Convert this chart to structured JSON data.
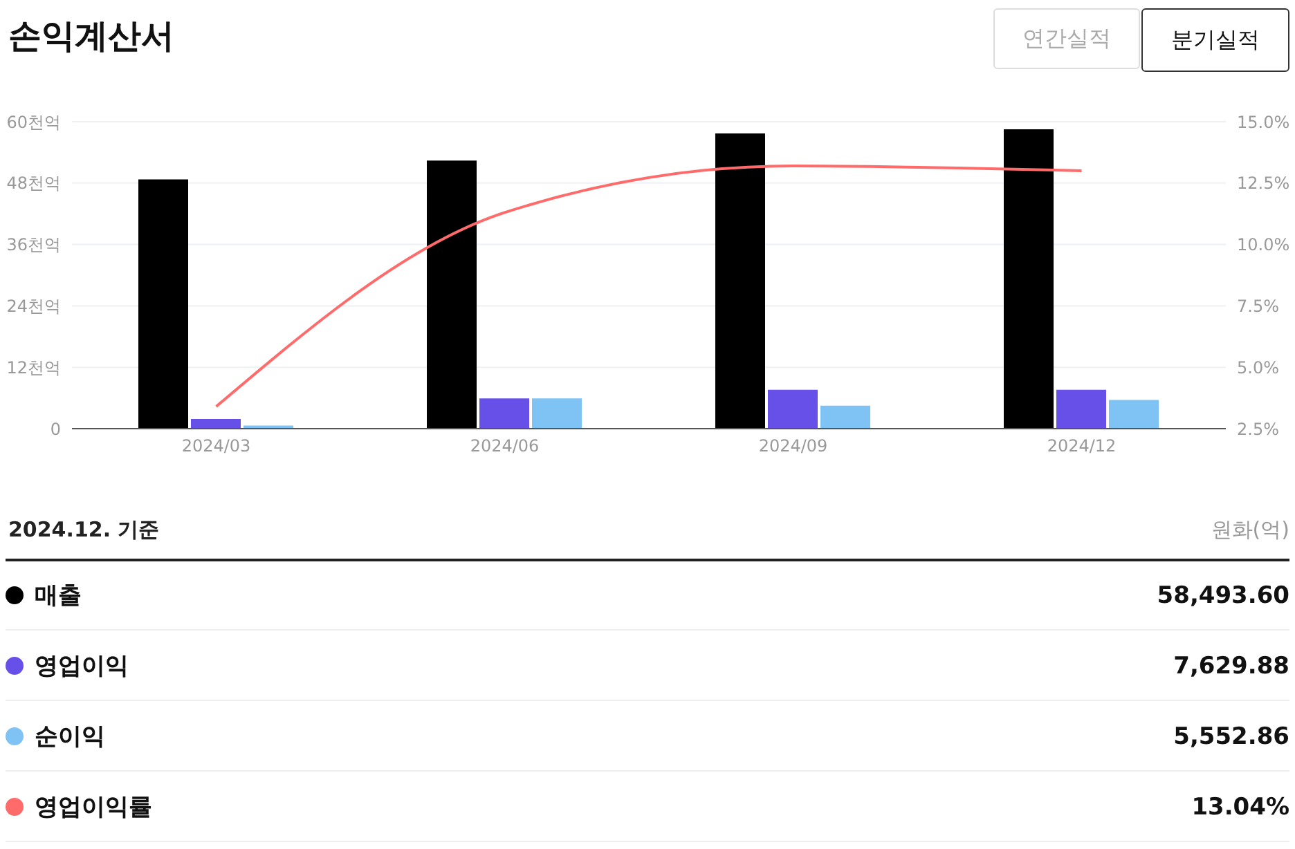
{
  "chart_data": {
    "type": "bar",
    "title": "손익계산서",
    "categories": [
      "2024/03",
      "2024/06",
      "2024/09",
      "2024/12"
    ],
    "series": [
      {
        "name": "매출",
        "color": "#000000",
        "values": [
          48.7,
          52.4,
          57.7,
          58.5
        ]
      },
      {
        "name": "영업이익",
        "color": "#6650e8",
        "values": [
          1.9,
          5.9,
          7.6,
          7.6
        ]
      },
      {
        "name": "순이익",
        "color": "#7fc3f5",
        "values": [
          0.6,
          5.9,
          4.5,
          5.6
        ]
      },
      {
        "name": "영업이익률",
        "type": "line",
        "axis": "y2",
        "color": "#ff6b6b",
        "values": [
          3.4,
          11.3,
          13.2,
          13.0
        ]
      }
    ],
    "ylim": [
      0,
      60
    ],
    "yticks": [
      0,
      {
        "value": 12,
        "label": "12천억"
      },
      {
        "value": 24,
        "label": "24천억"
      },
      {
        "value": 36,
        "label": "36천억"
      },
      {
        "value": 48,
        "label": "48천억"
      },
      {
        "value": 60,
        "label": "60천억"
      }
    ],
    "y2lim": [
      2.5,
      15
    ],
    "y2ticks": [
      {
        "value": 2.5,
        "label": "2.5%"
      },
      {
        "value": 5,
        "label": "5.0%"
      },
      {
        "value": 7.5,
        "label": "7.5%"
      },
      {
        "value": 10,
        "label": "10.0%"
      },
      {
        "value": 12.5,
        "label": "12.5%"
      },
      {
        "value": 15,
        "label": "15.0%"
      }
    ],
    "grid": "y",
    "legend": "bottom",
    "marker": "none",
    "line_style": "solid",
    "annotations": [
      "연간실적",
      "분기실적",
      "2024.12. 기준",
      "원화(억)",
      "58,493.60",
      "7,629.88",
      "5,552.86",
      "13.04%"
    ]
  }
}
